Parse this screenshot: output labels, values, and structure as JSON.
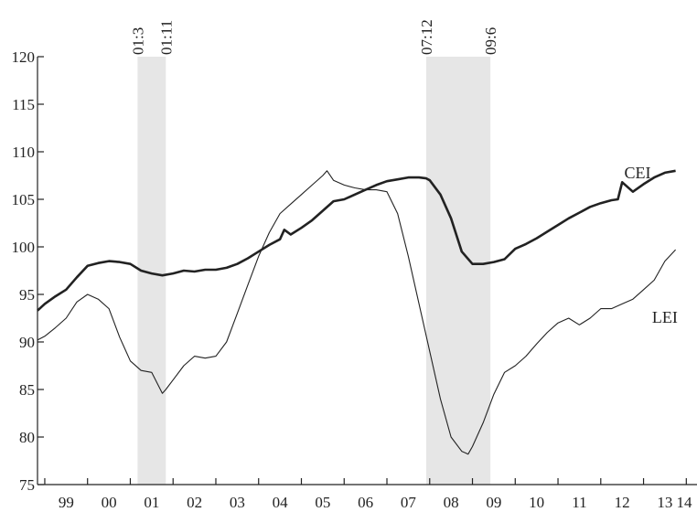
{
  "chart_data": {
    "type": "line",
    "title": "",
    "xlabel": "",
    "ylabel": "",
    "ylim": [
      75,
      120
    ],
    "yticks": [
      75,
      80,
      85,
      90,
      95,
      100,
      105,
      110,
      115,
      120
    ],
    "xlim": [
      1998.83,
      2014.25
    ],
    "xticks": [
      {
        "label": "99",
        "value": 1999
      },
      {
        "label": "00",
        "value": 2000
      },
      {
        "label": "01",
        "value": 2001
      },
      {
        "label": "02",
        "value": 2002
      },
      {
        "label": "03",
        "value": 2003
      },
      {
        "label": "04",
        "value": 2004
      },
      {
        "label": "05",
        "value": 2005
      },
      {
        "label": "06",
        "value": 2006
      },
      {
        "label": "07",
        "value": 2007
      },
      {
        "label": "08",
        "value": 2008
      },
      {
        "label": "09",
        "value": 2009
      },
      {
        "label": "10",
        "value": 2010
      },
      {
        "label": "11",
        "value": 2011
      },
      {
        "label": "12",
        "value": 2012
      },
      {
        "label": "13",
        "value": 2013
      },
      {
        "label": "14",
        "value": 2014
      }
    ],
    "grid": false,
    "legend": "none",
    "recessions": [
      {
        "start_label": "01:3",
        "end_label": "01:11",
        "start": 2001.17,
        "end": 2001.83
      },
      {
        "start_label": "07:12",
        "end_label": "09:6",
        "start": 2007.92,
        "end": 2009.42
      }
    ],
    "colors": {
      "recession": "#e6e6e6",
      "line": "#222222"
    },
    "series": [
      {
        "name": "CEI",
        "label_at": [
          2012.55,
          107.2
        ],
        "x": [
          1998.83,
          1999.0,
          1999.25,
          1999.5,
          1999.75,
          2000.0,
          2000.25,
          2000.5,
          2000.75,
          2001.0,
          2001.25,
          2001.5,
          2001.75,
          2002.0,
          2002.25,
          2002.5,
          2002.75,
          2003.0,
          2003.25,
          2003.5,
          2003.75,
          2004.0,
          2004.25,
          2004.5,
          2004.6,
          2004.75,
          2005.0,
          2005.25,
          2005.5,
          2005.75,
          2006.0,
          2006.25,
          2006.5,
          2006.75,
          2007.0,
          2007.25,
          2007.5,
          2007.75,
          2007.92,
          2008.0,
          2008.25,
          2008.5,
          2008.75,
          2009.0,
          2009.25,
          2009.5,
          2009.75,
          2010.0,
          2010.25,
          2010.5,
          2010.75,
          2011.0,
          2011.25,
          2011.5,
          2011.75,
          2012.0,
          2012.25,
          2012.4,
          2012.5,
          2012.75,
          2013.0,
          2013.25,
          2013.5,
          2013.75
        ],
        "values": [
          93.3,
          94.0,
          94.8,
          95.5,
          96.8,
          98.0,
          98.3,
          98.5,
          98.4,
          98.2,
          97.5,
          97.2,
          97.0,
          97.2,
          97.5,
          97.4,
          97.6,
          97.6,
          97.8,
          98.2,
          98.8,
          99.5,
          100.2,
          100.8,
          101.8,
          101.3,
          102.0,
          102.8,
          103.8,
          104.8,
          105.0,
          105.5,
          106.0,
          106.5,
          106.9,
          107.1,
          107.3,
          107.3,
          107.2,
          107.0,
          105.5,
          103.0,
          99.5,
          98.2,
          98.2,
          98.4,
          98.7,
          99.8,
          100.3,
          100.9,
          101.6,
          102.3,
          103.0,
          103.6,
          104.2,
          104.6,
          104.9,
          105.0,
          106.8,
          105.8,
          106.6,
          107.3,
          107.8,
          108.0
        ]
      },
      {
        "name": "LEI",
        "label_at": [
          2013.2,
          92.0
        ],
        "x": [
          1998.83,
          1999.0,
          1999.25,
          1999.5,
          1999.75,
          2000.0,
          2000.25,
          2000.5,
          2000.75,
          2001.0,
          2001.25,
          2001.5,
          2001.75,
          2001.83,
          2002.0,
          2002.25,
          2002.5,
          2002.75,
          2003.0,
          2003.25,
          2003.5,
          2003.75,
          2004.0,
          2004.25,
          2004.5,
          2004.75,
          2005.0,
          2005.25,
          2005.5,
          2005.6,
          2005.75,
          2006.0,
          2006.25,
          2006.5,
          2006.75,
          2007.0,
          2007.25,
          2007.5,
          2007.75,
          2008.0,
          2008.25,
          2008.5,
          2008.75,
          2008.9,
          2009.0,
          2009.25,
          2009.5,
          2009.75,
          2010.0,
          2010.25,
          2010.5,
          2010.75,
          2011.0,
          2011.25,
          2011.5,
          2011.75,
          2012.0,
          2012.25,
          2012.5,
          2012.75,
          2013.0,
          2013.25,
          2013.5,
          2013.75
        ],
        "values": [
          90.2,
          90.6,
          91.5,
          92.5,
          94.2,
          95.0,
          94.5,
          93.5,
          90.5,
          88.0,
          87.0,
          86.8,
          84.6,
          85.0,
          86.0,
          87.5,
          88.5,
          88.3,
          88.5,
          90.0,
          93.0,
          96.0,
          99.0,
          101.5,
          103.5,
          104.5,
          105.5,
          106.5,
          107.5,
          108.0,
          107.0,
          106.5,
          106.2,
          106.0,
          106.0,
          105.8,
          103.5,
          99.0,
          94.0,
          89.0,
          84.0,
          80.0,
          78.5,
          78.2,
          79.0,
          81.5,
          84.5,
          86.8,
          87.5,
          88.5,
          89.8,
          91.0,
          92.0,
          92.5,
          91.8,
          92.5,
          93.5,
          93.5,
          94.0,
          94.5,
          95.5,
          96.5,
          98.5,
          99.7
        ]
      }
    ]
  }
}
